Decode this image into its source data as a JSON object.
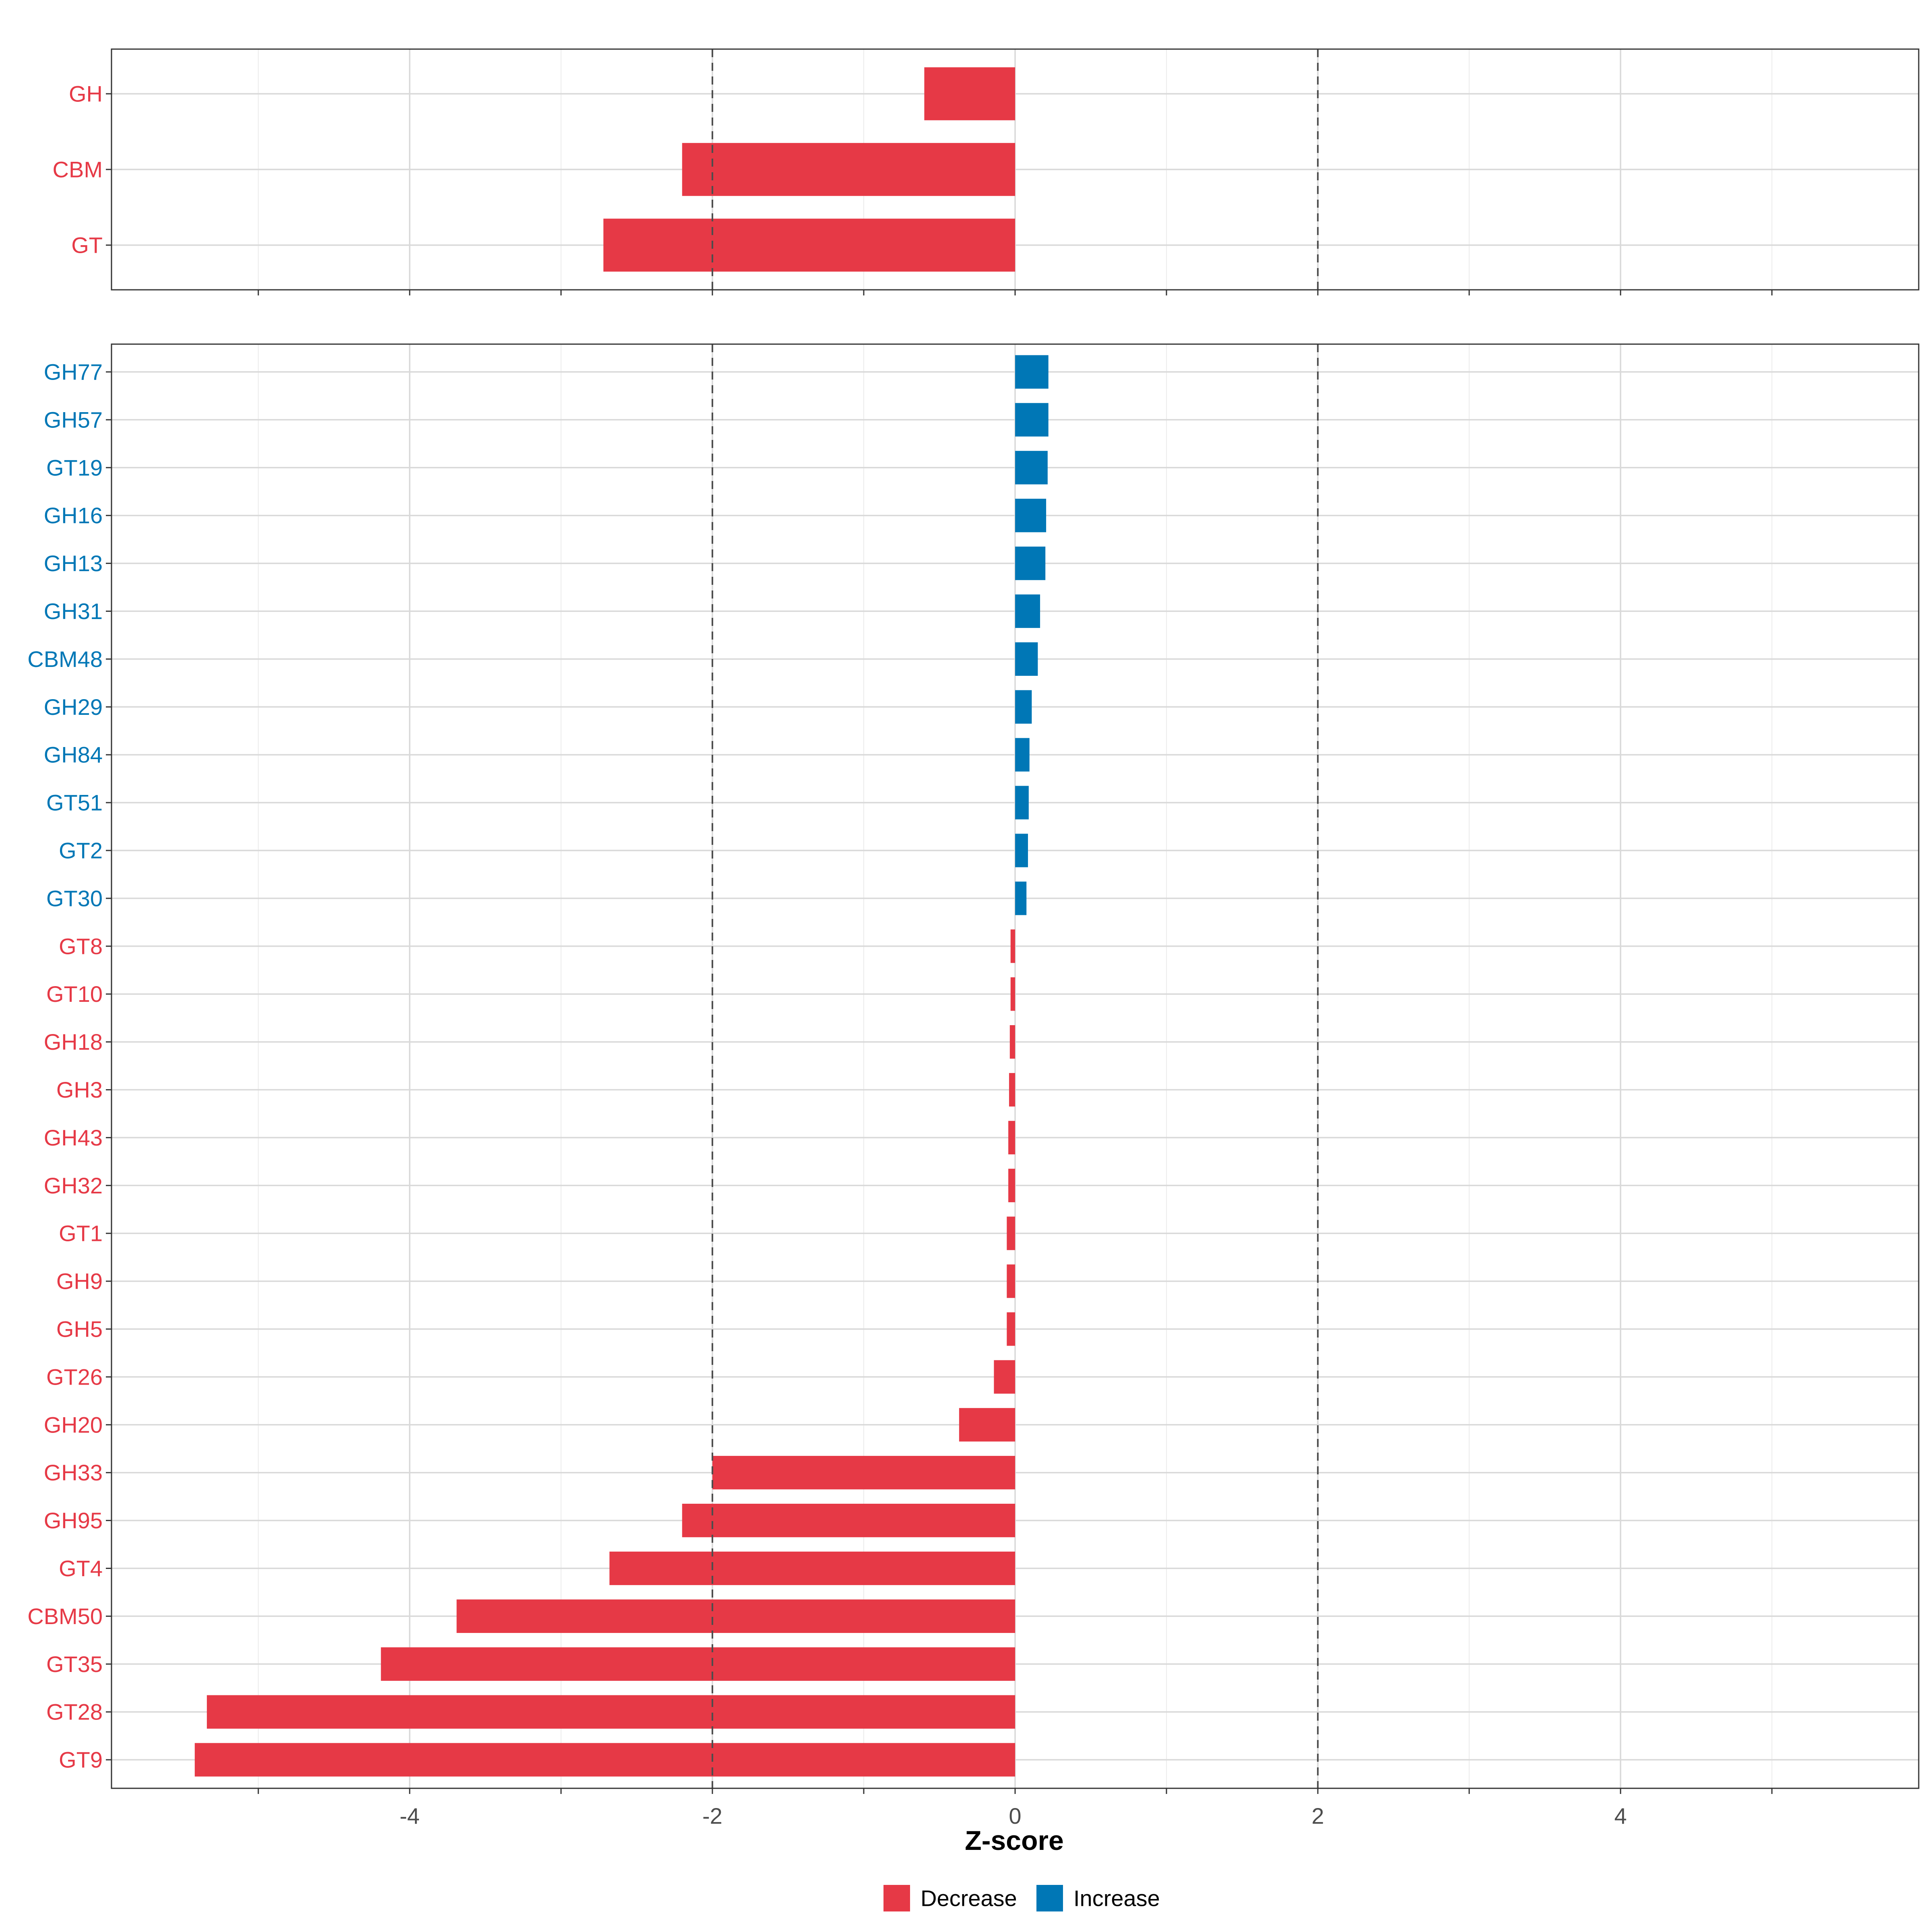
{
  "chart_data": {
    "type": "bar",
    "orientation": "horizontal",
    "xlabel": "Z-score",
    "xlim": [
      -5.97,
      5.97
    ],
    "x_ticks": [
      -4,
      -2,
      0,
      2,
      4
    ],
    "x_tick_labels": [
      "-4",
      "-2",
      "0",
      "2",
      "4"
    ],
    "reference_lines": [
      -2,
      2
    ],
    "grid": true,
    "colors": {
      "Decrease": "#E63946",
      "Increase": "#0077B6"
    },
    "legend": {
      "position": "bottom",
      "entries": [
        {
          "label": "Decrease",
          "color": "#E63946"
        },
        {
          "label": "Increase",
          "color": "#0077B6"
        }
      ]
    },
    "panels": [
      {
        "name": "category",
        "bars": [
          {
            "label": "GH",
            "value": -0.6,
            "direction": "Decrease"
          },
          {
            "label": "CBM",
            "value": -2.2,
            "direction": "Decrease"
          },
          {
            "label": "GT",
            "value": -2.72,
            "direction": "Decrease"
          }
        ]
      },
      {
        "name": "family",
        "bars": [
          {
            "label": "GH77",
            "value": 0.22,
            "direction": "Increase"
          },
          {
            "label": "GH57",
            "value": 0.22,
            "direction": "Increase"
          },
          {
            "label": "GT19",
            "value": 0.215,
            "direction": "Increase"
          },
          {
            "label": "GH16",
            "value": 0.205,
            "direction": "Increase"
          },
          {
            "label": "GH13",
            "value": 0.2,
            "direction": "Increase"
          },
          {
            "label": "GH31",
            "value": 0.165,
            "direction": "Increase"
          },
          {
            "label": "CBM48",
            "value": 0.15,
            "direction": "Increase"
          },
          {
            "label": "GH29",
            "value": 0.11,
            "direction": "Increase"
          },
          {
            "label": "GH84",
            "value": 0.095,
            "direction": "Increase"
          },
          {
            "label": "GT51",
            "value": 0.09,
            "direction": "Increase"
          },
          {
            "label": "GT2",
            "value": 0.085,
            "direction": "Increase"
          },
          {
            "label": "GT30",
            "value": 0.075,
            "direction": "Increase"
          },
          {
            "label": "GT8",
            "value": -0.03,
            "direction": "Decrease"
          },
          {
            "label": "GT10",
            "value": -0.03,
            "direction": "Decrease"
          },
          {
            "label": "GH18",
            "value": -0.035,
            "direction": "Decrease"
          },
          {
            "label": "GH3",
            "value": -0.04,
            "direction": "Decrease"
          },
          {
            "label": "GH43",
            "value": -0.045,
            "direction": "Decrease"
          },
          {
            "label": "GH32",
            "value": -0.045,
            "direction": "Decrease"
          },
          {
            "label": "GT1",
            "value": -0.055,
            "direction": "Decrease"
          },
          {
            "label": "GH9",
            "value": -0.055,
            "direction": "Decrease"
          },
          {
            "label": "GH5",
            "value": -0.055,
            "direction": "Decrease"
          },
          {
            "label": "GT26",
            "value": -0.14,
            "direction": "Decrease"
          },
          {
            "label": "GH20",
            "value": -0.37,
            "direction": "Decrease"
          },
          {
            "label": "GH33",
            "value": -2.0,
            "direction": "Decrease"
          },
          {
            "label": "GH95",
            "value": -2.2,
            "direction": "Decrease"
          },
          {
            "label": "GT4",
            "value": -2.68,
            "direction": "Decrease"
          },
          {
            "label": "CBM50",
            "value": -3.69,
            "direction": "Decrease"
          },
          {
            "label": "GT35",
            "value": -4.19,
            "direction": "Decrease"
          },
          {
            "label": "GT28",
            "value": -5.34,
            "direction": "Decrease"
          },
          {
            "label": "GT9",
            "value": -5.42,
            "direction": "Decrease"
          }
        ]
      }
    ]
  }
}
